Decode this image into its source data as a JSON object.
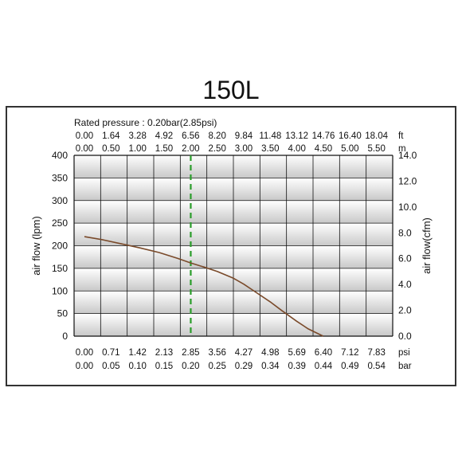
{
  "colors": {
    "frame": "#333333",
    "grid": "#111111",
    "band_light": "#ffffff",
    "band_dark": "#c8c8c8",
    "curve": "#7a4a2a",
    "rated_line": "#2a9d2a"
  },
  "chart_data": {
    "type": "line",
    "title": "150L",
    "subtitle": "Rated pressure : 0.20bar(2.85psi)",
    "rated_pressure": {
      "bar": 0.2,
      "psi": 2.85
    },
    "ylabel_left": "air flow (lpm)",
    "ylabel_right": "air flow(cfm)",
    "ylim_left": [
      0,
      400
    ],
    "ylim_right": [
      0,
      14
    ],
    "yticks_left": [
      "0",
      "50",
      "100",
      "150",
      "200",
      "250",
      "300",
      "350",
      "400"
    ],
    "yticks_right": [
      "0.0",
      "2.0",
      "4.0",
      "6.0",
      "8.0",
      "10.0",
      "12.0",
      "14.0"
    ],
    "x_axes": {
      "top_ft": {
        "unit": "ft",
        "ticks": [
          "0.00",
          "1.64",
          "3.28",
          "4.92",
          "6.56",
          "8.20",
          "9.84",
          "11.48",
          "13.12",
          "14.76",
          "16.40",
          "18.04"
        ]
      },
      "top_m": {
        "unit": "m",
        "ticks": [
          "0.00",
          "0.50",
          "1.00",
          "1.50",
          "2.00",
          "2.50",
          "3.00",
          "3.50",
          "4.00",
          "4.50",
          "5.00",
          "5.50"
        ]
      },
      "bottom_psi": {
        "unit": "psi",
        "ticks": [
          "0.00",
          "0.71",
          "1.42",
          "2.13",
          "2.85",
          "3.56",
          "4.27",
          "4.98",
          "5.69",
          "6.40",
          "7.12",
          "7.83"
        ]
      },
      "bottom_bar": {
        "unit": "bar",
        "ticks": [
          "0.00",
          "0.05",
          "0.10",
          "0.15",
          "0.20",
          "0.25",
          "0.29",
          "0.34",
          "0.39",
          "0.44",
          "0.49",
          "0.54"
        ]
      }
    },
    "xlim_psi": [
      0,
      7.83
    ],
    "grid": true,
    "series": [
      {
        "x_psi": [
          0.0,
          0.5,
          1.0,
          1.5,
          2.0,
          2.5,
          2.85,
          3.2,
          3.56,
          4.0,
          4.27,
          4.6,
          4.98,
          5.3,
          5.69,
          6.0,
          6.4
        ],
        "y_lpm": [
          220,
          213,
          204,
          195,
          185,
          172,
          162,
          153,
          143,
          128,
          115,
          97,
          76,
          56,
          33,
          16,
          0
        ]
      }
    ]
  }
}
